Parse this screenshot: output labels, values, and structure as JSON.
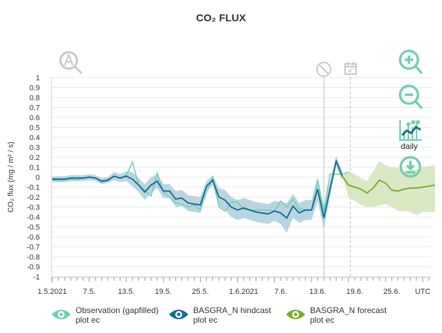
{
  "title": "CO₂ FLUX",
  "daily_label": "daily",
  "colors": {
    "observation": "#6fcfb2",
    "hindcast": "#126e8e",
    "hindcast_band": "#a9cbd9",
    "forecast": "#7aab2e",
    "forecast_band": "#d6e6bd",
    "icon": "#6fcfb2",
    "icon_gray": "#c8c8c8",
    "grid": "#e8e8e8"
  },
  "legend": [
    {
      "label1": "Observation (gapfilled)",
      "label2": "plot ec",
      "color": "#6fcfb2",
      "icon": "eye-icon"
    },
    {
      "label1": "BASGRA_N hindcast",
      "label2": "plot ec",
      "color": "#126e8e",
      "icon": "eye-icon"
    },
    {
      "label1": "BASGRA_N forecast",
      "label2": "plot ec",
      "color": "#7aab2e",
      "icon": "eye-icon"
    }
  ],
  "chart_data": {
    "type": "line",
    "title": "CO₂ FLUX",
    "ylabel": "CO₂ flux (mg / m² / s)",
    "xlabel": "",
    "x_unit": "days since 1.5.2021",
    "xlim": [
      0,
      61.4
    ],
    "ylim": [
      -1,
      1
    ],
    "yticks": [
      "1",
      "0.9",
      "0.8",
      "0.7",
      "0.6",
      "0.5",
      "0.4",
      "0.3",
      "0.2",
      "0.1",
      "0",
      "-0.1",
      "-0.2",
      "-0.3",
      "-0.4",
      "-0.5",
      "-0.6",
      "-0.7",
      "-0.8",
      "-0.9",
      "-1"
    ],
    "xticks": [
      {
        "day": 0,
        "label": "1.5.2021"
      },
      {
        "day": 6,
        "label": "7.5."
      },
      {
        "day": 12,
        "label": "13.5."
      },
      {
        "day": 18,
        "label": "19.5."
      },
      {
        "day": 24,
        "label": "25.5."
      },
      {
        "day": 31,
        "label": "1.6.2021"
      },
      {
        "day": 37,
        "label": "7.6."
      },
      {
        "day": 43,
        "label": "13.6."
      },
      {
        "day": 49,
        "label": "19.6."
      },
      {
        "day": 55,
        "label": "25.6."
      },
      {
        "day": 61.4,
        "label": "UTC"
      }
    ],
    "now_marker_day": 44,
    "forecast_start_day": 48.3,
    "grid": true,
    "legend_position": "bottom",
    "series": [
      {
        "name": "Observation (gapfilled) plot ec",
        "start_day": 0,
        "values": [
          -0.03,
          -0.03,
          -0.03,
          -0.02,
          -0.03,
          -0.01,
          0,
          -0.01,
          -0.05,
          -0.04,
          0.01,
          -0.01,
          0.02,
          0.15,
          -0.08,
          -0.13,
          -0.19,
          0.04,
          -0.15,
          -0.2,
          -0.26,
          -0.27,
          -0.3,
          -0.28,
          -0.33,
          -0.15,
          0,
          -0.3,
          -0.34,
          -0.25,
          -0.25,
          -0.32,
          -0.33,
          -0.33,
          -0.33,
          -0.33,
          -0.34,
          -0.24,
          -0.3,
          -0.22,
          -0.32,
          -0.33,
          -0.33,
          -0.03,
          -0.35,
          0.03,
          0.03,
          0.03,
          0.05
        ]
      },
      {
        "name": "BASGRA_N hindcast plot ec",
        "start_day": 0,
        "values": [
          -0.02,
          -0.02,
          -0.02,
          -0.01,
          -0.01,
          -0.01,
          0,
          -0.01,
          -0.04,
          -0.03,
          0.01,
          -0.01,
          0.01,
          -0.02,
          -0.08,
          -0.15,
          -0.08,
          -0.04,
          -0.14,
          -0.14,
          -0.22,
          -0.21,
          -0.26,
          -0.27,
          -0.28,
          -0.09,
          -0.03,
          -0.2,
          -0.23,
          -0.3,
          -0.33,
          -0.31,
          -0.33,
          -0.35,
          -0.36,
          -0.37,
          -0.34,
          -0.36,
          -0.41,
          -0.29,
          -0.36,
          -0.33,
          -0.33,
          -0.12,
          -0.41,
          -0.12,
          0.16,
          0.01
        ],
        "band_spread": [
          0.03,
          0.03,
          0.03,
          0.03,
          0.03,
          0.03,
          0.03,
          0.03,
          0.03,
          0.03,
          0.04,
          0.04,
          0.05,
          0.07,
          0.07,
          0.08,
          0.08,
          0.07,
          0.07,
          0.07,
          0.08,
          0.08,
          0.08,
          0.08,
          0.08,
          0.05,
          0.05,
          0.09,
          0.1,
          0.1,
          0.1,
          0.1,
          0.1,
          0.1,
          0.1,
          0.1,
          0.1,
          0.11,
          0.15,
          0.12,
          0.1,
          0.1,
          0.1,
          0.12,
          0.12,
          0.08,
          0.05,
          0.05
        ]
      },
      {
        "name": "BASGRA_N forecast plot ec",
        "start_day": 47,
        "values": [
          0.01,
          -0.08,
          -0.1,
          -0.12,
          -0.16,
          -0.11,
          -0.03,
          -0.06,
          -0.13,
          -0.14,
          -0.12,
          -0.11,
          -0.11,
          -0.1,
          -0.09,
          -0.08
        ],
        "upper": [
          0.01,
          0.06,
          0.03,
          -0.01,
          -0.04,
          0.06,
          0.16,
          0.12,
          0.1,
          0.09,
          0.06,
          0.07,
          0.08,
          0.1,
          0.11,
          0.12
        ],
        "lower": [
          0.01,
          -0.2,
          -0.24,
          -0.28,
          -0.3,
          -0.3,
          -0.28,
          -0.27,
          -0.3,
          -0.34,
          -0.34,
          -0.35,
          -0.38,
          -0.35,
          -0.35,
          -0.35
        ]
      }
    ]
  }
}
